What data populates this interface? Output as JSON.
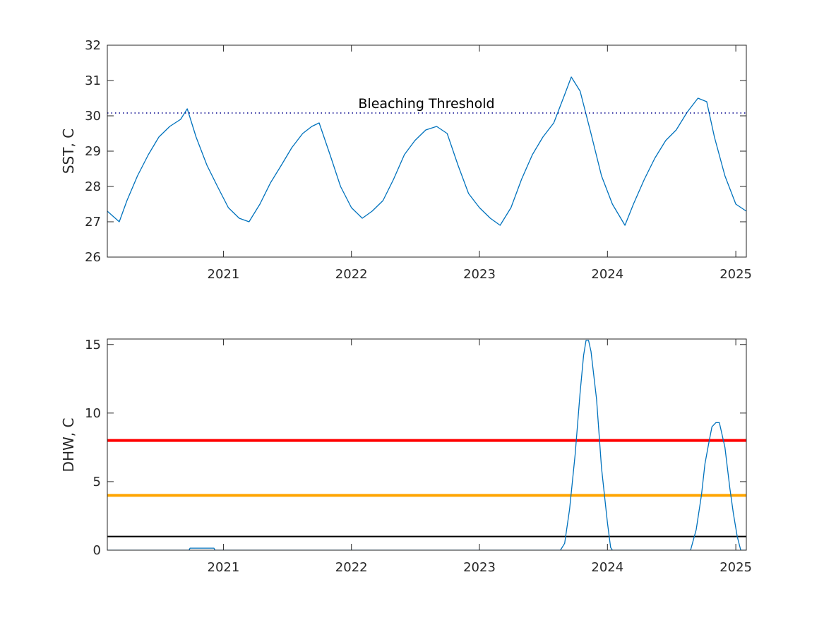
{
  "chart_data": [
    {
      "type": "line",
      "title": "",
      "xlabel": "",
      "ylabel": "SST, C",
      "xlim": [
        "2020-02-05",
        "2025-01-31"
      ],
      "ylim": [
        26,
        32
      ],
      "xticks": [
        {
          "date": "2021-01-01",
          "label": "2021"
        },
        {
          "date": "2022-01-01",
          "label": "2022"
        },
        {
          "date": "2023-01-01",
          "label": "2023"
        },
        {
          "date": "2024-01-01",
          "label": "2024"
        },
        {
          "date": "2025-01-01",
          "label": "2025"
        }
      ],
      "yticks": [
        26,
        27,
        28,
        29,
        30,
        31,
        32
      ],
      "grid": false,
      "series": [
        {
          "color": "#0072BD",
          "style": "solid",
          "x": [
            "2020-02-05",
            "2020-03-10",
            "2020-04-01",
            "2020-05-01",
            "2020-06-01",
            "2020-07-01",
            "2020-08-01",
            "2020-09-01",
            "2020-09-20",
            "2020-10-15",
            "2020-11-15",
            "2020-12-15",
            "2021-01-15",
            "2021-02-15",
            "2021-03-15",
            "2021-04-15",
            "2021-05-15",
            "2021-06-15",
            "2021-07-15",
            "2021-08-15",
            "2021-09-10",
            "2021-10-01",
            "2021-11-01",
            "2021-12-01",
            "2022-01-01",
            "2022-02-01",
            "2022-03-01",
            "2022-04-01",
            "2022-05-01",
            "2022-06-01",
            "2022-07-01",
            "2022-08-01",
            "2022-09-01",
            "2022-10-01",
            "2022-11-01",
            "2022-12-01",
            "2023-01-01",
            "2023-02-01",
            "2023-03-01",
            "2023-04-01",
            "2023-05-01",
            "2023-06-01",
            "2023-07-01",
            "2023-08-01",
            "2023-09-01",
            "2023-09-20",
            "2023-10-15",
            "2023-11-15",
            "2023-12-15",
            "2024-01-15",
            "2024-02-20",
            "2024-03-15",
            "2024-04-15",
            "2024-05-15",
            "2024-06-15",
            "2024-07-15",
            "2024-08-15",
            "2024-09-15",
            "2024-10-10",
            "2024-11-01",
            "2024-12-01",
            "2025-01-01",
            "2025-01-31"
          ],
          "y": [
            27.3,
            27.0,
            27.6,
            28.3,
            28.9,
            29.4,
            29.7,
            29.9,
            30.2,
            29.4,
            28.6,
            28.0,
            27.4,
            27.1,
            27.0,
            27.5,
            28.1,
            28.6,
            29.1,
            29.5,
            29.7,
            29.8,
            28.9,
            28.0,
            27.4,
            27.1,
            27.3,
            27.6,
            28.2,
            28.9,
            29.3,
            29.6,
            29.7,
            29.5,
            28.6,
            27.8,
            27.4,
            27.1,
            26.9,
            27.4,
            28.2,
            28.9,
            29.4,
            29.8,
            30.6,
            31.1,
            30.7,
            29.5,
            28.3,
            27.5,
            26.9,
            27.5,
            28.2,
            28.8,
            29.3,
            29.6,
            30.1,
            30.5,
            30.4,
            29.4,
            28.3,
            27.5,
            27.3
          ]
        },
        {
          "color": "#00008B",
          "style": "dotted",
          "x": [
            "2020-02-05",
            "2025-01-31"
          ],
          "y": [
            30.08,
            30.08
          ]
        }
      ],
      "annotations": [
        {
          "text": "Bleaching Threshold",
          "x": "2021-12-01",
          "y": 30.3
        }
      ]
    },
    {
      "type": "line",
      "title": "",
      "xlabel": "",
      "ylabel": "DHW, C",
      "xlim": [
        "2020-02-05",
        "2025-01-31"
      ],
      "ylim": [
        0,
        15.4
      ],
      "xticks": [
        {
          "date": "2021-01-01",
          "label": "2021"
        },
        {
          "date": "2022-01-01",
          "label": "2022"
        },
        {
          "date": "2023-01-01",
          "label": "2023"
        },
        {
          "date": "2024-01-01",
          "label": "2024"
        },
        {
          "date": "2025-01-01",
          "label": "2025"
        }
      ],
      "yticks": [
        0,
        5,
        10,
        15
      ],
      "grid": false,
      "series": [
        {
          "color": "#0072BD",
          "style": "solid",
          "x": [
            "2020-02-05",
            "2020-09-25",
            "2020-09-28",
            "2020-12-05",
            "2020-12-08",
            "2023-08-20",
            "2023-09-01",
            "2023-09-15",
            "2023-10-01",
            "2023-10-15",
            "2023-10-25",
            "2023-11-01",
            "2023-11-08",
            "2023-11-15",
            "2023-12-01",
            "2023-12-15",
            "2024-01-01",
            "2024-01-10",
            "2024-01-15",
            "2024-08-25",
            "2024-09-10",
            "2024-09-25",
            "2024-10-05",
            "2024-10-15",
            "2024-10-25",
            "2024-11-05",
            "2024-11-15",
            "2024-12-01",
            "2024-12-15",
            "2024-12-25",
            "2025-01-05",
            "2025-01-15",
            "2025-01-31"
          ],
          "y": [
            0,
            0,
            0.15,
            0.15,
            0,
            0,
            0.5,
            3.0,
            7.0,
            11.5,
            14.2,
            15.3,
            15.3,
            14.5,
            11.0,
            6.0,
            2.0,
            0.2,
            0,
            0,
            1.5,
            4.0,
            6.3,
            7.7,
            9.0,
            9.3,
            9.3,
            7.5,
            4.5,
            2.7,
            1.0,
            0,
            0
          ]
        }
      ],
      "threshold_lines": [
        {
          "y": 8,
          "color": "#FF0000"
        },
        {
          "y": 4,
          "color": "#FFA500"
        },
        {
          "y": 1,
          "color": "#000000"
        }
      ]
    }
  ]
}
